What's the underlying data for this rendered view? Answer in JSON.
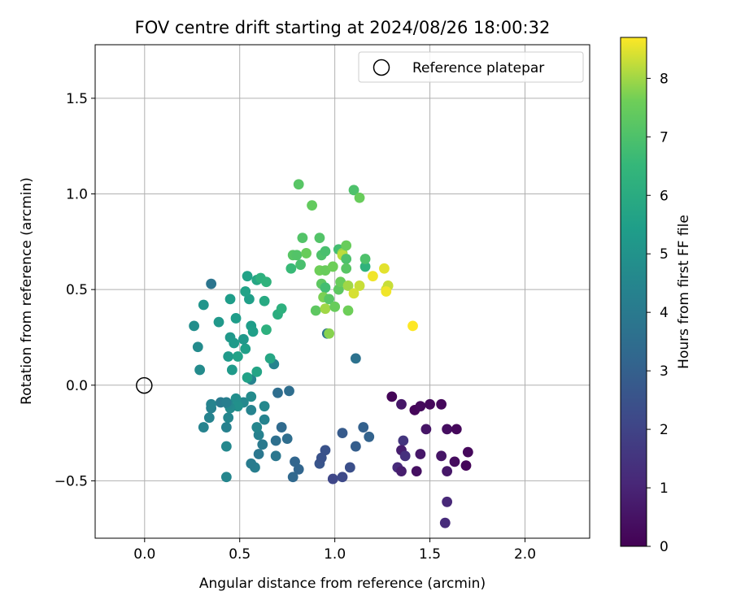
{
  "chart_data": {
    "type": "scatter",
    "title": "FOV centre drift starting at 2024/08/26 18:00:32",
    "xlabel": "Angular distance from reference (arcmin)",
    "ylabel": "Rotation from reference (arcmin)",
    "xlim": [
      -0.26,
      2.34
    ],
    "ylim": [
      -0.8,
      1.78
    ],
    "x_ticks": [
      0.0,
      0.5,
      1.0,
      1.5,
      2.0
    ],
    "x_tick_labels": [
      "0.0",
      "0.5",
      "1.0",
      "1.5",
      "2.0"
    ],
    "y_ticks": [
      -0.5,
      0.0,
      0.5,
      1.0,
      1.5
    ],
    "y_tick_labels": [
      "−0.5",
      "0.0",
      "0.5",
      "1.0",
      "1.5"
    ],
    "grid": true,
    "legend": {
      "position": "top-right",
      "entries": [
        "Reference platepar"
      ]
    },
    "reference_point": {
      "x": 0.0,
      "y": 0.0,
      "label": "Reference platepar"
    },
    "colorbar": {
      "label": "Hours from first FF file",
      "min": 0,
      "max": 8.7,
      "ticks": [
        0,
        1,
        2,
        3,
        4,
        5,
        6,
        7,
        8
      ],
      "tick_labels": [
        "0",
        "1",
        "2",
        "3",
        "4",
        "5",
        "6",
        "7",
        "8"
      ],
      "colormap": "viridis"
    },
    "points": [
      [
        1.3,
        -0.06,
        0.1
      ],
      [
        1.35,
        -0.1,
        0.6
      ],
      [
        1.42,
        -0.13,
        0.15
      ],
      [
        1.45,
        -0.11,
        0.25
      ],
      [
        1.5,
        -0.1,
        0.2
      ],
      [
        1.56,
        -0.1,
        0.2
      ],
      [
        1.48,
        -0.23,
        0.55
      ],
      [
        1.59,
        -0.23,
        0.35
      ],
      [
        1.64,
        -0.23,
        0.2
      ],
      [
        1.36,
        -0.29,
        1.5
      ],
      [
        1.35,
        -0.34,
        0.8
      ],
      [
        1.37,
        -0.37,
        1.4
      ],
      [
        1.45,
        -0.36,
        0.6
      ],
      [
        1.56,
        -0.37,
        0.55
      ],
      [
        1.63,
        -0.4,
        0.3
      ],
      [
        1.69,
        -0.42,
        0.15
      ],
      [
        1.7,
        -0.35,
        0.2
      ],
      [
        1.33,
        -0.43,
        1.2
      ],
      [
        1.35,
        -0.45,
        0.8
      ],
      [
        1.43,
        -0.45,
        0.4
      ],
      [
        1.59,
        -0.45,
        0.6
      ],
      [
        1.59,
        -0.61,
        1.1
      ],
      [
        1.58,
        -0.72,
        1.2
      ],
      [
        0.99,
        -0.49,
        2.1
      ],
      [
        1.04,
        -0.48,
        2.2
      ],
      [
        1.08,
        -0.43,
        2.4
      ],
      [
        0.95,
        -0.34,
        2.5
      ],
      [
        0.92,
        -0.41,
        2.6
      ],
      [
        0.93,
        -0.38,
        2.5
      ],
      [
        1.04,
        -0.25,
        2.8
      ],
      [
        1.11,
        -0.32,
        2.9
      ],
      [
        1.15,
        -0.22,
        3.0
      ],
      [
        1.18,
        -0.27,
        3.1
      ],
      [
        0.79,
        -0.4,
        3.2
      ],
      [
        0.78,
        -0.48,
        3.3
      ],
      [
        0.81,
        -0.44,
        3.2
      ],
      [
        0.72,
        -0.22,
        3.4
      ],
      [
        0.75,
        -0.28,
        3.5
      ],
      [
        0.69,
        -0.29,
        3.6
      ],
      [
        0.7,
        -0.04,
        3.5
      ],
      [
        0.76,
        -0.03,
        3.5
      ],
      [
        0.69,
        -0.37,
        3.9
      ],
      [
        0.62,
        -0.31,
        4.0
      ],
      [
        0.6,
        -0.36,
        3.9
      ],
      [
        0.58,
        -0.43,
        4.2
      ],
      [
        0.56,
        -0.41,
        4.1
      ],
      [
        0.6,
        -0.26,
        4.3
      ],
      [
        0.63,
        -0.18,
        4.4
      ],
      [
        0.59,
        -0.22,
        4.5
      ],
      [
        0.63,
        -0.11,
        4.6
      ],
      [
        0.56,
        -0.13,
        4.4
      ],
      [
        0.52,
        -0.09,
        4.6
      ],
      [
        0.56,
        -0.06,
        4.7
      ],
      [
        0.48,
        -0.07,
        4.8
      ],
      [
        0.49,
        -0.11,
        4.9
      ],
      [
        0.45,
        -0.12,
        4.7
      ],
      [
        0.44,
        -0.1,
        4.6
      ],
      [
        0.43,
        -0.22,
        4.3
      ],
      [
        0.44,
        -0.17,
        4.5
      ],
      [
        0.4,
        -0.09,
        4.0
      ],
      [
        0.34,
        -0.17,
        4.4
      ],
      [
        0.35,
        -0.12,
        4.3
      ],
      [
        0.35,
        -0.1,
        4.4
      ],
      [
        0.43,
        -0.32,
        4.6
      ],
      [
        0.43,
        -0.48,
        4.5
      ],
      [
        0.43,
        -0.09,
        4.2
      ],
      [
        0.31,
        -0.22,
        4.4
      ],
      [
        0.56,
        0.03,
        4.4
      ],
      [
        0.68,
        0.11,
        4.4
      ],
      [
        0.35,
        0.53,
        3.8
      ],
      [
        0.96,
        0.27,
        3.8
      ],
      [
        1.11,
        0.14,
        3.7
      ],
      [
        0.28,
        0.2,
        4.7
      ],
      [
        0.29,
        0.08,
        4.7
      ],
      [
        0.26,
        0.31,
        4.8
      ],
      [
        0.31,
        0.42,
        5.1
      ],
      [
        0.39,
        0.33,
        5.2
      ],
      [
        0.44,
        0.15,
        5.3
      ],
      [
        0.46,
        0.08,
        5.3
      ],
      [
        0.45,
        0.25,
        5.2
      ],
      [
        0.47,
        0.22,
        5.3
      ],
      [
        0.49,
        0.15,
        5.6
      ],
      [
        0.53,
        0.19,
        5.5
      ],
      [
        0.52,
        0.24,
        5.2
      ],
      [
        0.56,
        0.31,
        5.4
      ],
      [
        0.57,
        0.28,
        5.5
      ],
      [
        0.54,
        0.04,
        5.6
      ],
      [
        0.59,
        0.07,
        5.7
      ],
      [
        0.45,
        0.45,
        5.4
      ],
      [
        0.48,
        0.35,
        5.4
      ],
      [
        0.55,
        0.45,
        5.5
      ],
      [
        0.53,
        0.49,
        5.6
      ],
      [
        0.54,
        0.57,
        5.6
      ],
      [
        0.59,
        0.55,
        5.8
      ],
      [
        0.63,
        0.44,
        5.9
      ],
      [
        0.64,
        0.29,
        6.2
      ],
      [
        0.61,
        0.56,
        6.2
      ],
      [
        0.64,
        0.54,
        6.3
      ],
      [
        0.66,
        0.14,
        5.8
      ],
      [
        0.7,
        0.37,
        6.1
      ],
      [
        0.72,
        0.4,
        6.2
      ],
      [
        0.77,
        0.61,
        6.6
      ],
      [
        0.78,
        0.68,
        7.2
      ],
      [
        0.8,
        0.68,
        7.1
      ],
      [
        0.82,
        0.63,
        6.9
      ],
      [
        0.81,
        1.05,
        7.2
      ],
      [
        0.83,
        0.77,
        7.1
      ],
      [
        0.85,
        0.69,
        7.5
      ],
      [
        0.88,
        0.94,
        7.4
      ],
      [
        0.9,
        0.39,
        7.3
      ],
      [
        0.92,
        0.77,
        7.1
      ],
      [
        0.93,
        0.68,
        7.0
      ],
      [
        0.92,
        0.6,
        7.6
      ],
      [
        0.93,
        0.53,
        7.3
      ],
      [
        0.95,
        0.7,
        6.9
      ],
      [
        0.95,
        0.6,
        7.5
      ],
      [
        0.95,
        0.51,
        6.8
      ],
      [
        0.94,
        0.46,
        7.7
      ],
      [
        0.95,
        0.4,
        8.0
      ],
      [
        0.97,
        0.45,
        7.2
      ],
      [
        0.99,
        0.62,
        7.6
      ],
      [
        1.0,
        0.41,
        7.5
      ],
      [
        1.02,
        0.71,
        6.8
      ],
      [
        1.02,
        0.5,
        7.3
      ],
      [
        1.03,
        0.54,
        7.5
      ],
      [
        1.04,
        0.69,
        7.9
      ],
      [
        1.04,
        0.68,
        8.2
      ],
      [
        1.06,
        0.73,
        7.5
      ],
      [
        1.06,
        0.66,
        7.0
      ],
      [
        1.06,
        0.61,
        7.2
      ],
      [
        1.07,
        0.52,
        8.0
      ],
      [
        1.07,
        0.39,
        7.6
      ],
      [
        1.1,
        1.02,
        7.0
      ],
      [
        1.1,
        0.48,
        8.4
      ],
      [
        1.13,
        0.98,
        7.5
      ],
      [
        1.13,
        0.52,
        8.3
      ],
      [
        1.16,
        0.62,
        6.3
      ],
      [
        1.16,
        0.66,
        7.0
      ],
      [
        1.2,
        0.57,
        8.6
      ],
      [
        1.26,
        0.61,
        8.5
      ],
      [
        1.27,
        0.5,
        8.4
      ],
      [
        1.28,
        0.52,
        8.3
      ],
      [
        1.27,
        0.49,
        8.6
      ],
      [
        1.41,
        0.31,
        8.7
      ],
      [
        0.97,
        0.27,
        7.8
      ]
    ]
  }
}
